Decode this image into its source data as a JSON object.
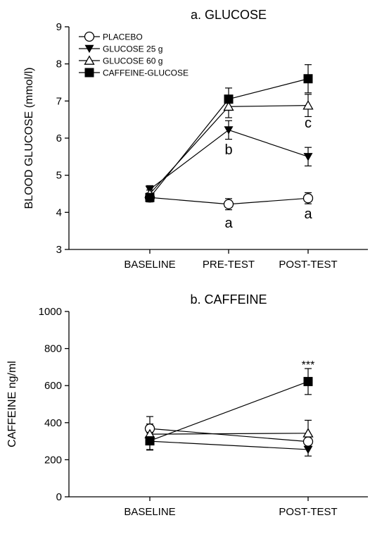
{
  "chart_data": [
    {
      "type": "line",
      "title": "a. GLUCOSE",
      "ylabel": "BLOOD GLUCOSE (mmol/l)",
      "xlabel": "",
      "ylim": [
        3,
        9
      ],
      "yticks": [
        3,
        4,
        5,
        6,
        7,
        8,
        9
      ],
      "categories": [
        "BASELINE",
        "PRE-TEST",
        "POST-TEST"
      ],
      "legend_position": "top-left",
      "series": [
        {
          "name": "PLACEBO",
          "marker": "open-circle",
          "values": [
            4.4,
            4.22,
            4.38
          ],
          "errors": [
            0.1,
            0.15,
            0.15
          ]
        },
        {
          "name": "GLUCOSE 25 g",
          "marker": "filled-triangle-down",
          "values": [
            4.62,
            6.22,
            5.5
          ],
          "errors": [
            0.1,
            0.25,
            0.25
          ]
        },
        {
          "name": "GLUCOSE 60 g",
          "marker": "open-triangle-up",
          "values": [
            4.5,
            6.85,
            6.88
          ],
          "errors": [
            0.1,
            0.3,
            0.3
          ]
        },
        {
          "name": "CAFFEINE-GLUCOSE",
          "marker": "filled-square",
          "values": [
            4.4,
            7.05,
            7.6
          ],
          "errors": [
            0.12,
            0.3,
            0.38
          ]
        }
      ],
      "annotations": [
        {
          "text": "a",
          "category": "PRE-TEST",
          "y": 3.7
        },
        {
          "text": "b",
          "category": "PRE-TEST",
          "y": 5.68
        },
        {
          "text": "a",
          "category": "POST-TEST",
          "y": 3.95
        },
        {
          "text": "c",
          "category": "POST-TEST",
          "y": 6.4
        }
      ]
    },
    {
      "type": "line",
      "title": "b. CAFFEINE",
      "ylabel": "CAFFEINE ng/ml",
      "xlabel": "",
      "ylim": [
        0,
        1000
      ],
      "yticks": [
        0,
        200,
        400,
        600,
        800,
        1000
      ],
      "categories": [
        "BASELINE",
        "POST-TEST"
      ],
      "series": [
        {
          "name": "PLACEBO",
          "marker": "open-circle",
          "values": [
            368,
            298
          ],
          "errors": [
            65,
            30
          ]
        },
        {
          "name": "GLUCOSE 25 g",
          "marker": "filled-triangle-down",
          "values": [
            300,
            255
          ],
          "errors": [
            45,
            35
          ]
        },
        {
          "name": "GLUCOSE 60 g",
          "marker": "open-triangle-up",
          "values": [
            338,
            343
          ],
          "errors": [
            55,
            70
          ]
        },
        {
          "name": "CAFFEINE-GLUCOSE",
          "marker": "filled-square",
          "values": [
            302,
            622
          ],
          "errors": [
            50,
            70
          ]
        }
      ],
      "annotations": [
        {
          "text": "***",
          "category": "POST-TEST",
          "y": 715
        }
      ]
    }
  ]
}
